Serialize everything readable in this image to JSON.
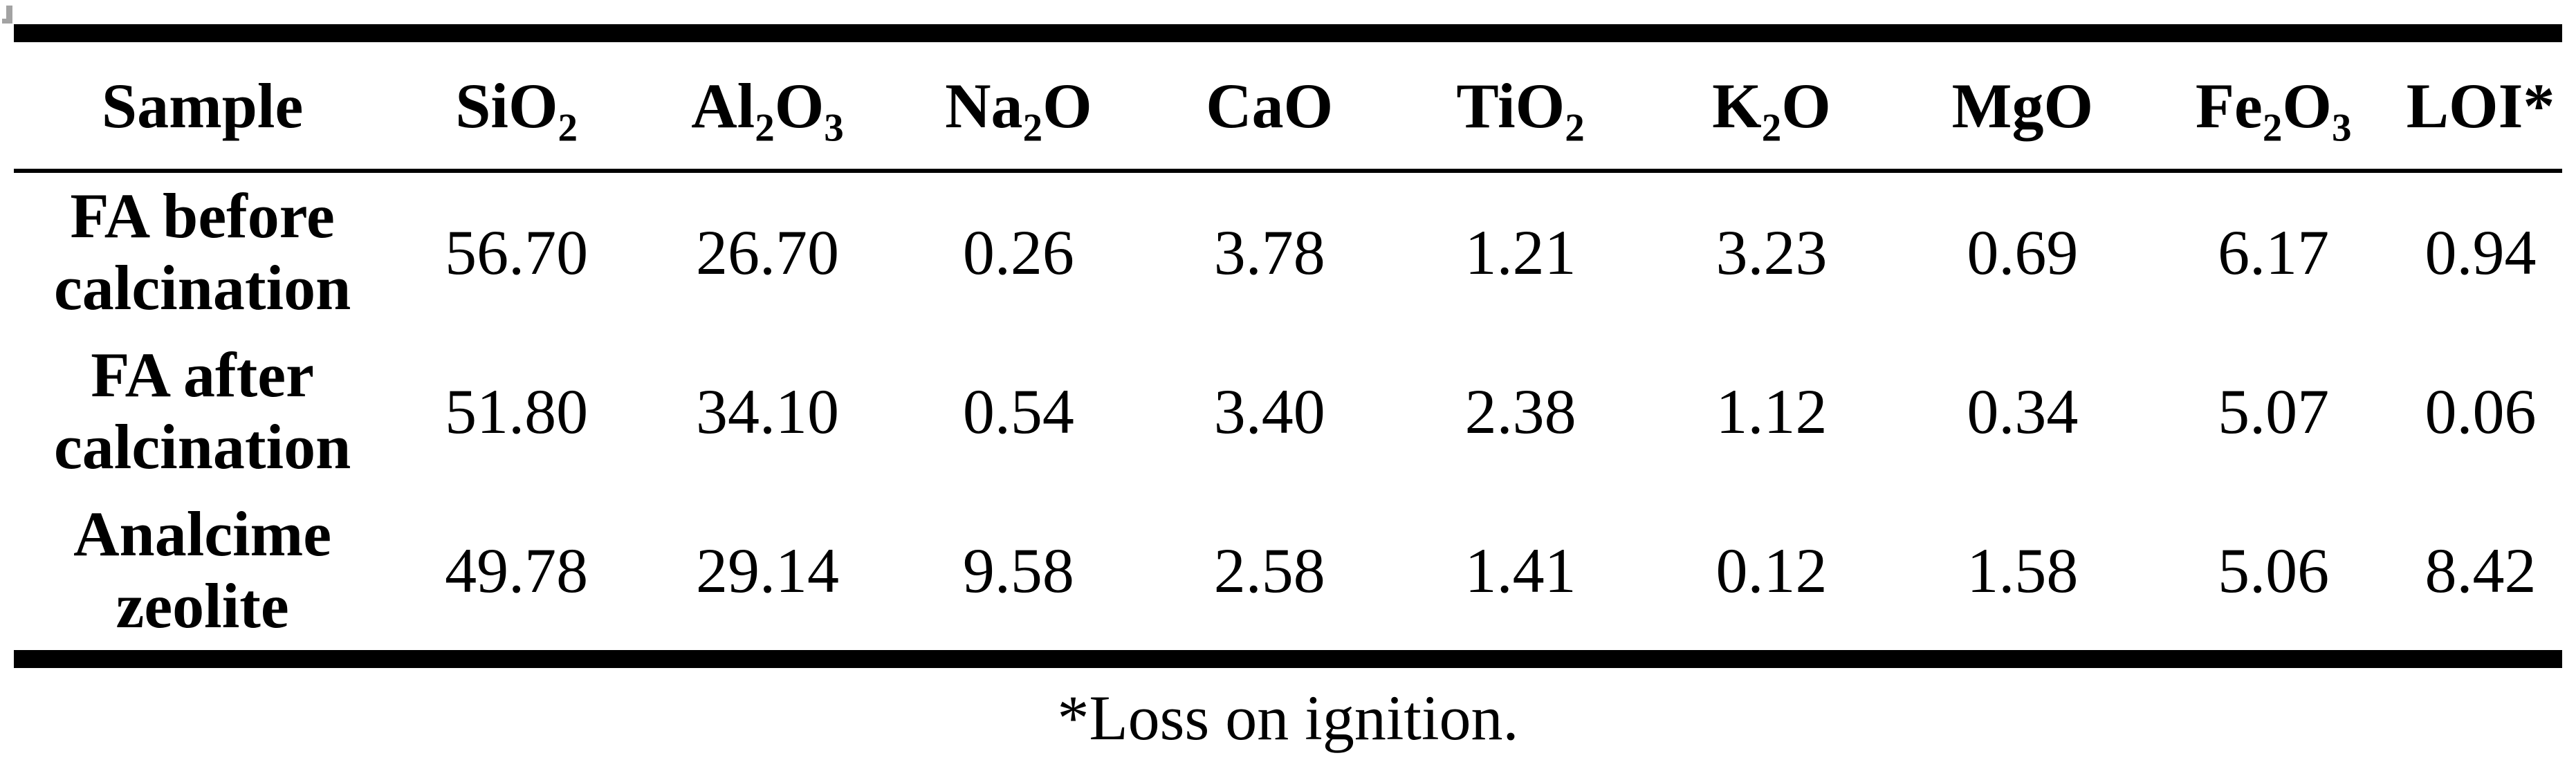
{
  "colors": {
    "background": "#ffffff",
    "text": "#000000",
    "rule": "#000000",
    "artifact_gray": "#a3a3a3"
  },
  "table": {
    "columns": [
      {
        "name": "sample",
        "parts": [
          [
            "t",
            "Sample"
          ]
        ]
      },
      {
        "name": "sio2",
        "parts": [
          [
            "t",
            "SiO"
          ],
          [
            "s",
            "2"
          ]
        ]
      },
      {
        "name": "al2o3",
        "parts": [
          [
            "t",
            "Al"
          ],
          [
            "s",
            "2"
          ],
          [
            "t",
            "O"
          ],
          [
            "s",
            "3"
          ]
        ]
      },
      {
        "name": "na2o",
        "parts": [
          [
            "t",
            "Na"
          ],
          [
            "s",
            "2"
          ],
          [
            "t",
            "O"
          ]
        ]
      },
      {
        "name": "cao",
        "parts": [
          [
            "t",
            "CaO"
          ]
        ]
      },
      {
        "name": "tio2",
        "parts": [
          [
            "t",
            "TiO"
          ],
          [
            "s",
            "2"
          ]
        ]
      },
      {
        "name": "k2o",
        "parts": [
          [
            "t",
            "K"
          ],
          [
            "s",
            "2"
          ],
          [
            "t",
            "O"
          ]
        ]
      },
      {
        "name": "mgo",
        "parts": [
          [
            "t",
            "MgO"
          ]
        ]
      },
      {
        "name": "fe2o3",
        "parts": [
          [
            "t",
            "Fe"
          ],
          [
            "s",
            "2"
          ],
          [
            "t",
            "O"
          ],
          [
            "s",
            "3"
          ]
        ]
      },
      {
        "name": "loi",
        "parts": [
          [
            "t",
            "LOI*"
          ]
        ]
      }
    ],
    "rows": [
      {
        "sample_lines": [
          "FA before",
          "calcination"
        ],
        "values": [
          "56.70",
          "26.70",
          "0.26",
          "3.78",
          "1.21",
          "3.23",
          "0.69",
          "6.17",
          "0.94"
        ]
      },
      {
        "sample_lines": [
          "FA after",
          "calcination"
        ],
        "values": [
          "51.80",
          "34.10",
          "0.54",
          "3.40",
          "2.38",
          "1.12",
          "0.34",
          "5.07",
          "0.06"
        ]
      },
      {
        "sample_lines": [
          "Analcime",
          "zeolite"
        ],
        "values": [
          "49.78",
          "29.14",
          "9.58",
          "2.58",
          "1.41",
          "0.12",
          "1.58",
          "5.06",
          "8.42"
        ]
      }
    ]
  },
  "footnote": {
    "text": "*Loss on ignition."
  }
}
